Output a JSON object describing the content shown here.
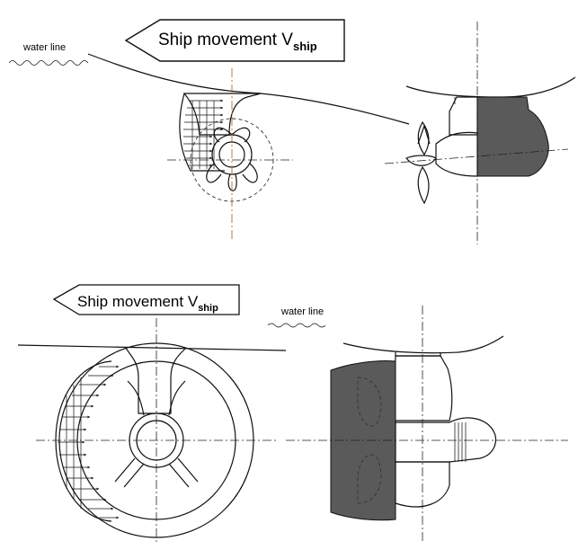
{
  "top_panel": {
    "water_line_label": "water line",
    "movement_label": "Ship movement V",
    "movement_subscript": "ship"
  },
  "bottom_panel": {
    "water_line_label": "water line",
    "movement_label": "Ship movement V",
    "movement_subscript": "ship"
  },
  "colors": {
    "hull_shading": "#5a5a5a",
    "centerline_accent": "#b5653a",
    "ink": "#111111"
  }
}
